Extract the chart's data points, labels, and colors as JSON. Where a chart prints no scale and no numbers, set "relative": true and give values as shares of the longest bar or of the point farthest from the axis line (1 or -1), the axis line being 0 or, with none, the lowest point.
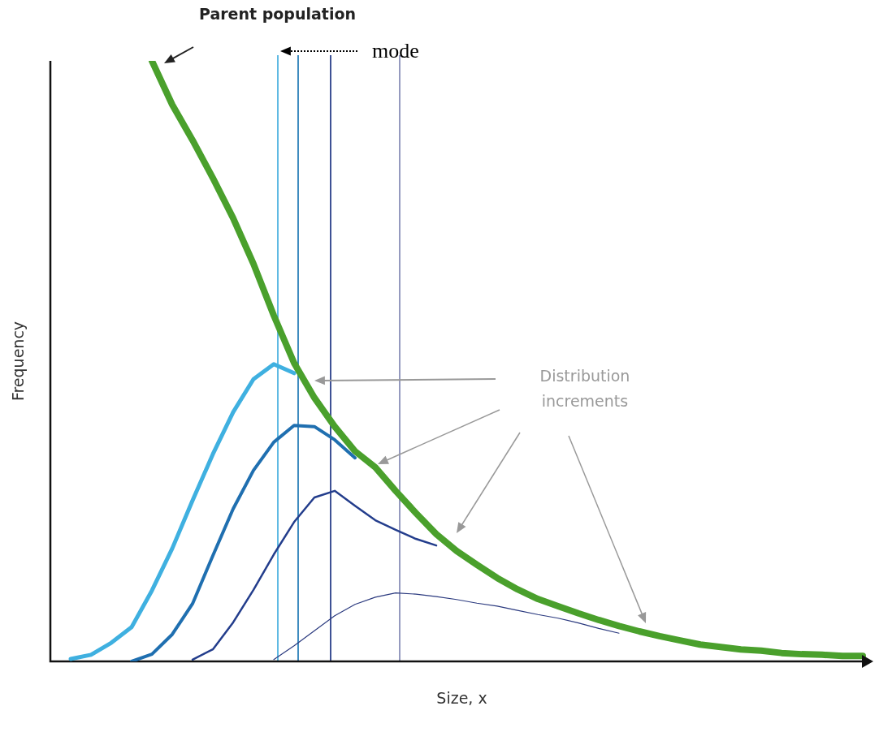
{
  "chart_data": {
    "type": "line",
    "relative": true,
    "xlabel": "Size, x",
    "ylabel": "Frequency",
    "marker": "none",
    "line_style": "solid",
    "categories": [
      null,
      null,
      null,
      null,
      null,
      null,
      null,
      null,
      null,
      null,
      null,
      null,
      null,
      null,
      null,
      null,
      null,
      null,
      null,
      null,
      null,
      null,
      null,
      null,
      null,
      null,
      null,
      null,
      null,
      null,
      null,
      null,
      null,
      null,
      null,
      null,
      null,
      null,
      null,
      null,
      null
    ],
    "annotations": [
      "Parent population",
      "mode",
      "Distribution increments"
    ],
    "series": [
      {
        "color": "#4aa02c",
        "values": [
          null,
          null,
          null,
          null,
          null,
          1,
          0.927,
          0.868,
          0.805,
          0.738,
          0.662,
          0.576,
          0.497,
          0.439,
          0.391,
          0.35,
          0.323,
          0.284,
          0.247,
          0.212,
          0.184,
          0.161,
          0.139,
          0.12,
          0.104,
          0.092,
          0.08,
          0.069,
          0.059,
          0.05,
          0.042,
          0.035,
          0.028,
          0.024,
          0.02,
          0.018,
          0.014,
          0.012,
          0.011,
          0.009,
          0.009
        ]
      },
      {
        "color": "#3fb0e0",
        "values": [
          null,
          0.004,
          0.011,
          0.031,
          0.057,
          0.118,
          0.188,
          0.268,
          0.345,
          0.415,
          0.47,
          0.495,
          0.48,
          null,
          null,
          null,
          null,
          null,
          null,
          null,
          null,
          null,
          null,
          null,
          null,
          null,
          null,
          null,
          null,
          null,
          null,
          null,
          null,
          null,
          null,
          null,
          null,
          null,
          null,
          null,
          null
        ]
      },
      {
        "color": "#1f6fb0",
        "values": [
          null,
          null,
          null,
          null,
          0,
          0.012,
          0.045,
          0.096,
          0.176,
          0.254,
          0.318,
          0.365,
          0.393,
          0.391,
          0.369,
          0.339,
          null,
          null,
          null,
          null,
          null,
          null,
          null,
          null,
          null,
          null,
          null,
          null,
          null,
          null,
          null,
          null,
          null,
          null,
          null,
          null,
          null,
          null,
          null,
          null,
          null
        ]
      },
      {
        "color": "#233d8c",
        "values": [
          null,
          null,
          null,
          null,
          null,
          null,
          null,
          0.003,
          0.02,
          0.065,
          0.119,
          0.178,
          0.232,
          0.273,
          0.284,
          0.259,
          0.235,
          0.219,
          0.204,
          0.193,
          null,
          null,
          null,
          null,
          null,
          null,
          null,
          null,
          null,
          null,
          null,
          null,
          null,
          null,
          null,
          null,
          null,
          null,
          null,
          null,
          null
        ]
      },
      {
        "color": "#2b3a7f",
        "values": [
          null,
          null,
          null,
          null,
          null,
          null,
          null,
          null,
          null,
          null,
          null,
          0.003,
          0.026,
          0.051,
          0.076,
          0.095,
          0.107,
          0.114,
          0.112,
          0.108,
          0.103,
          0.097,
          0.092,
          0.085,
          0.078,
          0.072,
          0.064,
          0.055,
          0.047,
          null,
          null,
          null,
          null,
          null,
          null,
          null,
          null,
          null,
          null,
          null,
          null
        ]
      }
    ]
  }
}
